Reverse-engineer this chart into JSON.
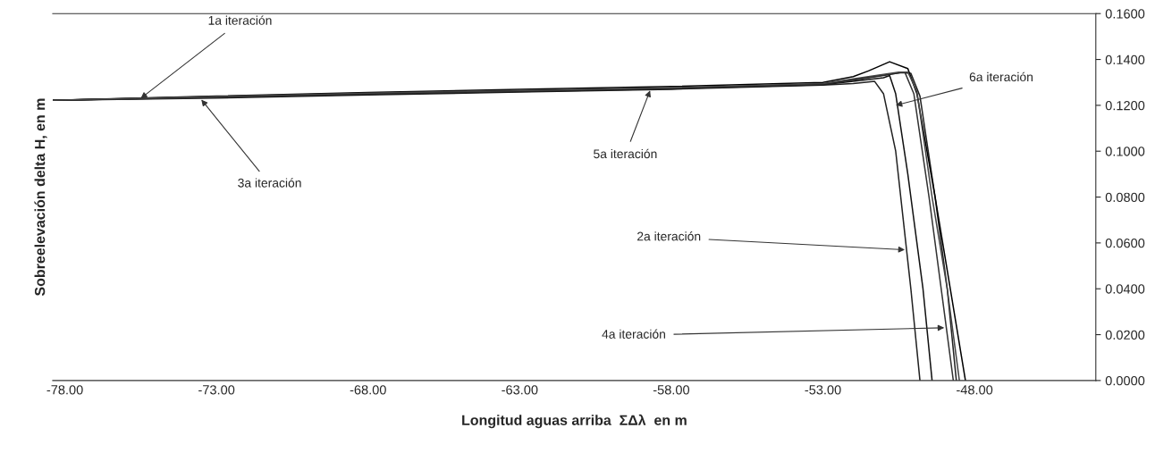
{
  "chart_data": {
    "type": "line",
    "xlabel": "Longitud aguas arriba  ΣΔλ  en m",
    "ylabel": "Sobreelevación delta H, en m",
    "xlim": [
      -78.4,
      -44.0
    ],
    "xticks": [
      {
        "value": -78,
        "label": "-78.00"
      },
      {
        "value": -73,
        "label": "-73.00"
      },
      {
        "value": -68,
        "label": "-68.00"
      },
      {
        "value": -63,
        "label": "-63.00"
      },
      {
        "value": -58,
        "label": "-58.00"
      },
      {
        "value": -53,
        "label": "-53.00"
      },
      {
        "value": -48,
        "label": "-48.00"
      }
    ],
    "ylim": [
      0,
      0.16
    ],
    "yticks": [
      {
        "value": 0,
        "label": "0.0000"
      },
      {
        "value": 0.02,
        "label": "0.0200"
      },
      {
        "value": 0.04,
        "label": "0.0400"
      },
      {
        "value": 0.06,
        "label": "0.0600"
      },
      {
        "value": 0.08,
        "label": "0.0800"
      },
      {
        "value": 0.1,
        "label": "0.1000"
      },
      {
        "value": 0.12,
        "label": "0.1200"
      },
      {
        "value": 0.14,
        "label": "0.1400"
      },
      {
        "value": 0.16,
        "label": "0.1600"
      }
    ],
    "grid": false,
    "legend": false,
    "marker": "none",
    "line_style": "solid",
    "series": [
      {
        "color": "#222222",
        "x": [
          -78.4,
          -73,
          -68,
          -63,
          -58,
          -53,
          -52,
          -51.5,
          -51.3,
          -51.0,
          -50.6,
          -50.1,
          -49.8
        ],
        "values": [
          0.1222,
          0.1232,
          0.1245,
          0.1258,
          0.127,
          0.1288,
          0.1295,
          0.1302,
          0.1305,
          0.125,
          0.1,
          0.04,
          0.0
        ]
      },
      {
        "color": "#111111",
        "x": [
          -78.4,
          -73,
          -68,
          -63,
          -58,
          -53,
          -52,
          -51.0,
          -50.8,
          -50.6,
          -50.2,
          -49.7,
          -49.4
        ],
        "values": [
          0.1222,
          0.1235,
          0.1248,
          0.126,
          0.1272,
          0.129,
          0.1305,
          0.132,
          0.133,
          0.125,
          0.09,
          0.04,
          0.0
        ]
      },
      {
        "color": "#333333",
        "x": [
          -78.4,
          -73,
          -68,
          -63,
          -58,
          -53,
          -52,
          -51,
          -50.5,
          -50.3,
          -50.0,
          -49.5,
          -49.1,
          -48.7
        ],
        "values": [
          0.1222,
          0.1236,
          0.125,
          0.1262,
          0.1274,
          0.1292,
          0.131,
          0.133,
          0.1342,
          0.1345,
          0.125,
          0.08,
          0.04,
          0.0
        ]
      },
      {
        "color": "#222222",
        "x": [
          -78.4,
          -73,
          -68,
          -63,
          -58,
          -53,
          -52,
          -51,
          -50.4,
          -50.1,
          -49.8,
          -49.3,
          -48.9,
          -48.6
        ],
        "values": [
          0.1222,
          0.1237,
          0.1251,
          0.1263,
          0.1275,
          0.1293,
          0.1312,
          0.1332,
          0.1343,
          0.134,
          0.124,
          0.08,
          0.04,
          0.0
        ]
      },
      {
        "color": "#000000",
        "x": [
          -78.4,
          -73,
          -68,
          -63,
          -58,
          -53,
          -52,
          -51.5,
          -50.8,
          -50.2,
          -49.9,
          -49.3,
          -48.8,
          -48.3
        ],
        "values": [
          0.1222,
          0.124,
          0.1256,
          0.127,
          0.1282,
          0.13,
          0.1325,
          0.135,
          0.139,
          0.136,
          0.125,
          0.08,
          0.04,
          0.0
        ]
      },
      {
        "color": "#444444",
        "x": [
          -78.4,
          -73,
          -68,
          -63,
          -58,
          -53,
          -52,
          -51,
          -50.5,
          -50.2,
          -49.9,
          -49.4,
          -48.9,
          -48.5
        ],
        "values": [
          0.1222,
          0.1238,
          0.1253,
          0.1265,
          0.1277,
          0.1295,
          0.1315,
          0.1335,
          0.1345,
          0.1345,
          0.126,
          0.08,
          0.04,
          0.0
        ]
      }
    ],
    "annotations": [
      {
        "text": "1a iteración",
        "x": -75.5,
        "y": 0.123
      },
      {
        "text": "3a iteración",
        "x": -73.5,
        "y": 0.1225
      },
      {
        "text": "5a iteración",
        "x": -58.7,
        "y": 0.1265
      },
      {
        "text": "6a iteración",
        "x": -50.6,
        "y": 0.12
      },
      {
        "text": "2a iteración",
        "x": -50.3,
        "y": 0.057
      },
      {
        "text": "4a iteración",
        "x": -49.0,
        "y": 0.023
      }
    ]
  }
}
